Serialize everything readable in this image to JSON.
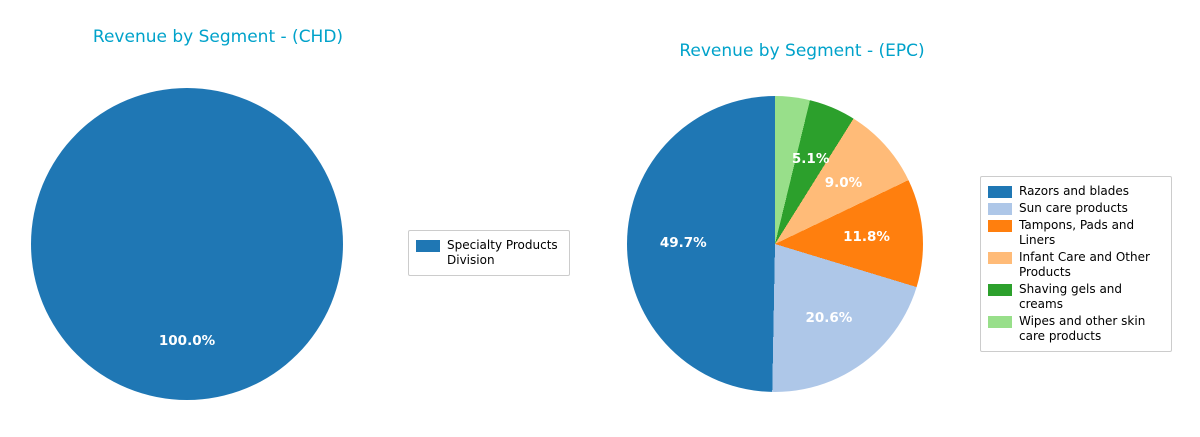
{
  "title_color": "#00a2ca",
  "pct_label_color": "#ffffff",
  "chart_data": [
    {
      "type": "pie",
      "title": "Revenue by Segment - (CHD)",
      "start_angle_deg": 90,
      "direction": "counterclockwise",
      "legend_position": "right",
      "slices": [
        {
          "label": "Specialty Products Division",
          "value": 100.0,
          "pct_label": "100.0%",
          "color": "#1f77b4"
        }
      ]
    },
    {
      "type": "pie",
      "title": "Revenue by Segment - (EPC)",
      "start_angle_deg": 90,
      "direction": "counterclockwise",
      "legend_position": "right",
      "slices": [
        {
          "label": "Razors and blades",
          "value": 49.7,
          "pct_label": "49.7%",
          "color": "#1f77b4"
        },
        {
          "label": "Sun care products",
          "value": 20.6,
          "pct_label": "20.6%",
          "color": "#aec7e8"
        },
        {
          "label": "Tampons, Pads and Liners",
          "value": 11.8,
          "pct_label": "11.8%",
          "color": "#ff7f0e"
        },
        {
          "label": "Infant Care and Other Products",
          "value": 9.0,
          "pct_label": "9.0%",
          "color": "#ffbb78"
        },
        {
          "label": "Shaving gels and creams",
          "value": 5.1,
          "pct_label": "5.1%",
          "color": "#2ca02c"
        },
        {
          "label": "Wipes and other skin care products",
          "value": 3.8,
          "pct_label": "",
          "color": "#98df8a"
        }
      ]
    }
  ]
}
